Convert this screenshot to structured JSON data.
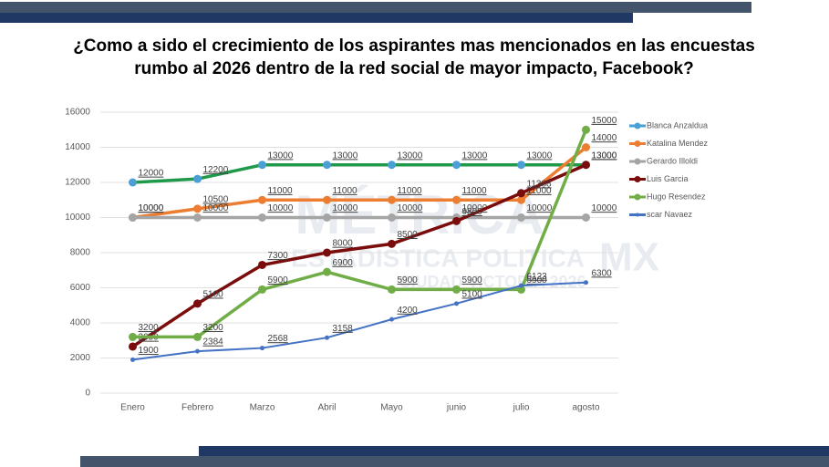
{
  "chart_data": {
    "type": "line",
    "title": [
      "¿Como a sido el crecimiento de los aspirantes mas mencionados en las encuestas",
      "rumbo al 2026 dentro de la red social de mayor impacto, Facebook?"
    ],
    "watermark": [
      "MÉTRICA",
      "MX",
      "ESTADISTICA POLITICA",
      "CIUDAD VICTORIA 2026"
    ],
    "categories": [
      "Enero",
      "Febrero",
      "Marzo",
      "Abril",
      "Mayo",
      "junio",
      "julio",
      "agosto"
    ],
    "ylim": [
      0,
      16000
    ],
    "yticks": [
      0,
      2000,
      4000,
      6000,
      8000,
      10000,
      12000,
      14000,
      16000
    ],
    "legend": "right",
    "series": [
      {
        "name": "Blanca Anzaldua",
        "color": "#4a9fd5",
        "line_color": "#1f9a4a",
        "values": [
          12000,
          12200,
          13000,
          13000,
          13000,
          13000,
          13000,
          13000
        ]
      },
      {
        "name": "Katalina Mendez",
        "color": "#ed7d31",
        "values": [
          10000,
          10500,
          11000,
          11000,
          11000,
          11000,
          11000,
          14000
        ]
      },
      {
        "name": "Gerardo Illoldi",
        "color": "#a5a5a5",
        "values": [
          10000,
          10000,
          10000,
          10000,
          10000,
          10000,
          10000,
          10000
        ]
      },
      {
        "name": "Luis Garcia",
        "color": "#7b0c0c",
        "values": [
          2650,
          5100,
          7300,
          8000,
          8500,
          9800,
          11388,
          13000
        ]
      },
      {
        "name": "Hugo Resendez",
        "color": "#70ad47",
        "values": [
          3200,
          3200,
          5900,
          6900,
          5900,
          5900,
          5900,
          15000
        ]
      },
      {
        "name": "scar Navaez",
        "color": "#4472c4",
        "values": [
          1900,
          2384,
          2568,
          3158,
          4200,
          5100,
          6123,
          6300
        ]
      }
    ]
  }
}
